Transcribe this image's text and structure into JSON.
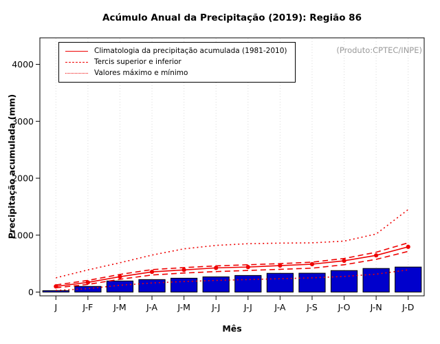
{
  "title": "Acúmulo Anual da Precipitação (2019): Região 86",
  "annotation": "(Produto:CPTEC/INPE)",
  "chart_data": {
    "type": "bar+line",
    "title": "Acúmulo Anual da Precipitação (2019): Região 86",
    "xlabel": "Mês",
    "ylabel": "Precipitação acumulada (mm)",
    "categories": [
      "J",
      "J-F",
      "J-M",
      "J-A",
      "J-M",
      "J-J",
      "J-J",
      "J-A",
      "J-S",
      "J-O",
      "J-N",
      "J-D"
    ],
    "ylim": [
      0,
      4400
    ],
    "yticks": [
      0,
      1000,
      2000,
      3000,
      4000
    ],
    "grid": "vertical-dotted",
    "legend_position": "top-left",
    "bar_series": {
      "color": "#0000cc",
      "values": [
        25,
        100,
        195,
        220,
        244,
        268,
        292,
        330,
        332,
        378,
        415,
        440
      ]
    },
    "line_series": [
      {
        "name": "Climatologia da precipitação acumulada (1981-2010)",
        "style": "solid",
        "marker": true,
        "color": "#ee0000",
        "values": [
          100,
          170,
          270,
          355,
          390,
          425,
          440,
          465,
          490,
          550,
          645,
          795
        ]
      },
      {
        "name": "Tercil superior",
        "style": "dashed",
        "marker": false,
        "color": "#ee0000",
        "values": [
          125,
          205,
          310,
          395,
          430,
          460,
          480,
          500,
          525,
          590,
          700,
          865
        ]
      },
      {
        "name": "Tercil inferior",
        "style": "dashed",
        "marker": false,
        "color": "#ee0000",
        "values": [
          75,
          135,
          225,
          300,
          335,
          360,
          380,
          400,
          420,
          480,
          575,
          715
        ]
      },
      {
        "name": "Máximo",
        "style": "dotted",
        "marker": false,
        "color": "#ee0000",
        "values": [
          250,
          390,
          515,
          650,
          760,
          820,
          850,
          860,
          865,
          895,
          1020,
          1450
        ]
      },
      {
        "name": "Mínimo",
        "style": "dotted",
        "marker": false,
        "color": "#ee0000",
        "values": [
          30,
          60,
          120,
          160,
          185,
          205,
          220,
          235,
          250,
          275,
          315,
          390
        ]
      }
    ],
    "legend": [
      {
        "label": "Climatologia da precipitação acumulada (1981-2010)",
        "style": "solid"
      },
      {
        "label": "Tercis superior e inferior",
        "style": "dashed"
      },
      {
        "label": "Valores máximo e mínimo",
        "style": "dotted"
      }
    ]
  }
}
